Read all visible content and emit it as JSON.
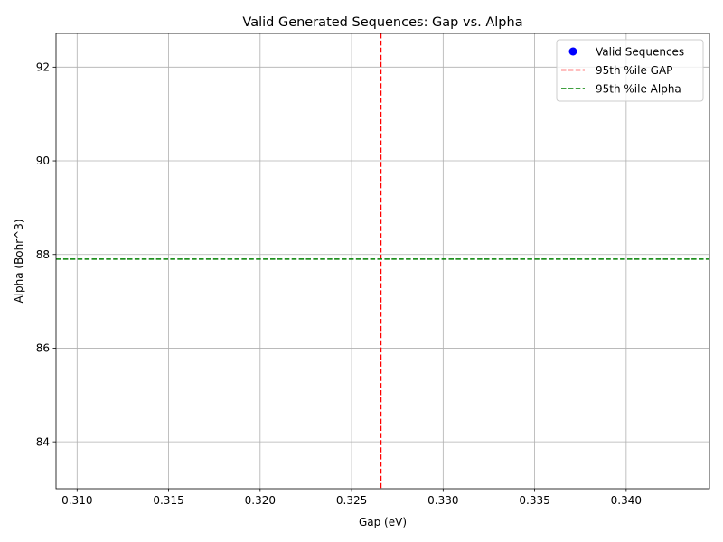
{
  "chart_data": {
    "type": "scatter",
    "title": "Valid Generated Sequences: Gap vs. Alpha",
    "xlabel": "Gap (eV)",
    "ylabel": "Alpha (Bohr^3)",
    "xlim": [
      0.30885,
      0.34455
    ],
    "ylim": [
      83.0,
      92.72
    ],
    "xticks": [
      0.31,
      0.315,
      0.32,
      0.325,
      0.33,
      0.335,
      0.34
    ],
    "xtick_labels": [
      "0.310",
      "0.315",
      "0.320",
      "0.325",
      "0.330",
      "0.335",
      "0.340"
    ],
    "yticks": [
      84,
      86,
      88,
      90,
      92
    ],
    "ytick_labels": [
      "84",
      "86",
      "88",
      "90",
      "92"
    ],
    "grid": true,
    "legend_position": "top-right",
    "series": [
      {
        "name": "Valid Sequences",
        "kind": "scatter",
        "color": "#0000ff",
        "x": [],
        "y": []
      }
    ],
    "reference_lines": [
      {
        "name": "95th %ile GAP",
        "orientation": "vertical",
        "value": 0.3266,
        "color": "#ff0000",
        "style": "dashed"
      },
      {
        "name": "95th %ile Alpha",
        "orientation": "horizontal",
        "value": 87.9,
        "color": "#008000",
        "style": "dashed"
      }
    ]
  }
}
